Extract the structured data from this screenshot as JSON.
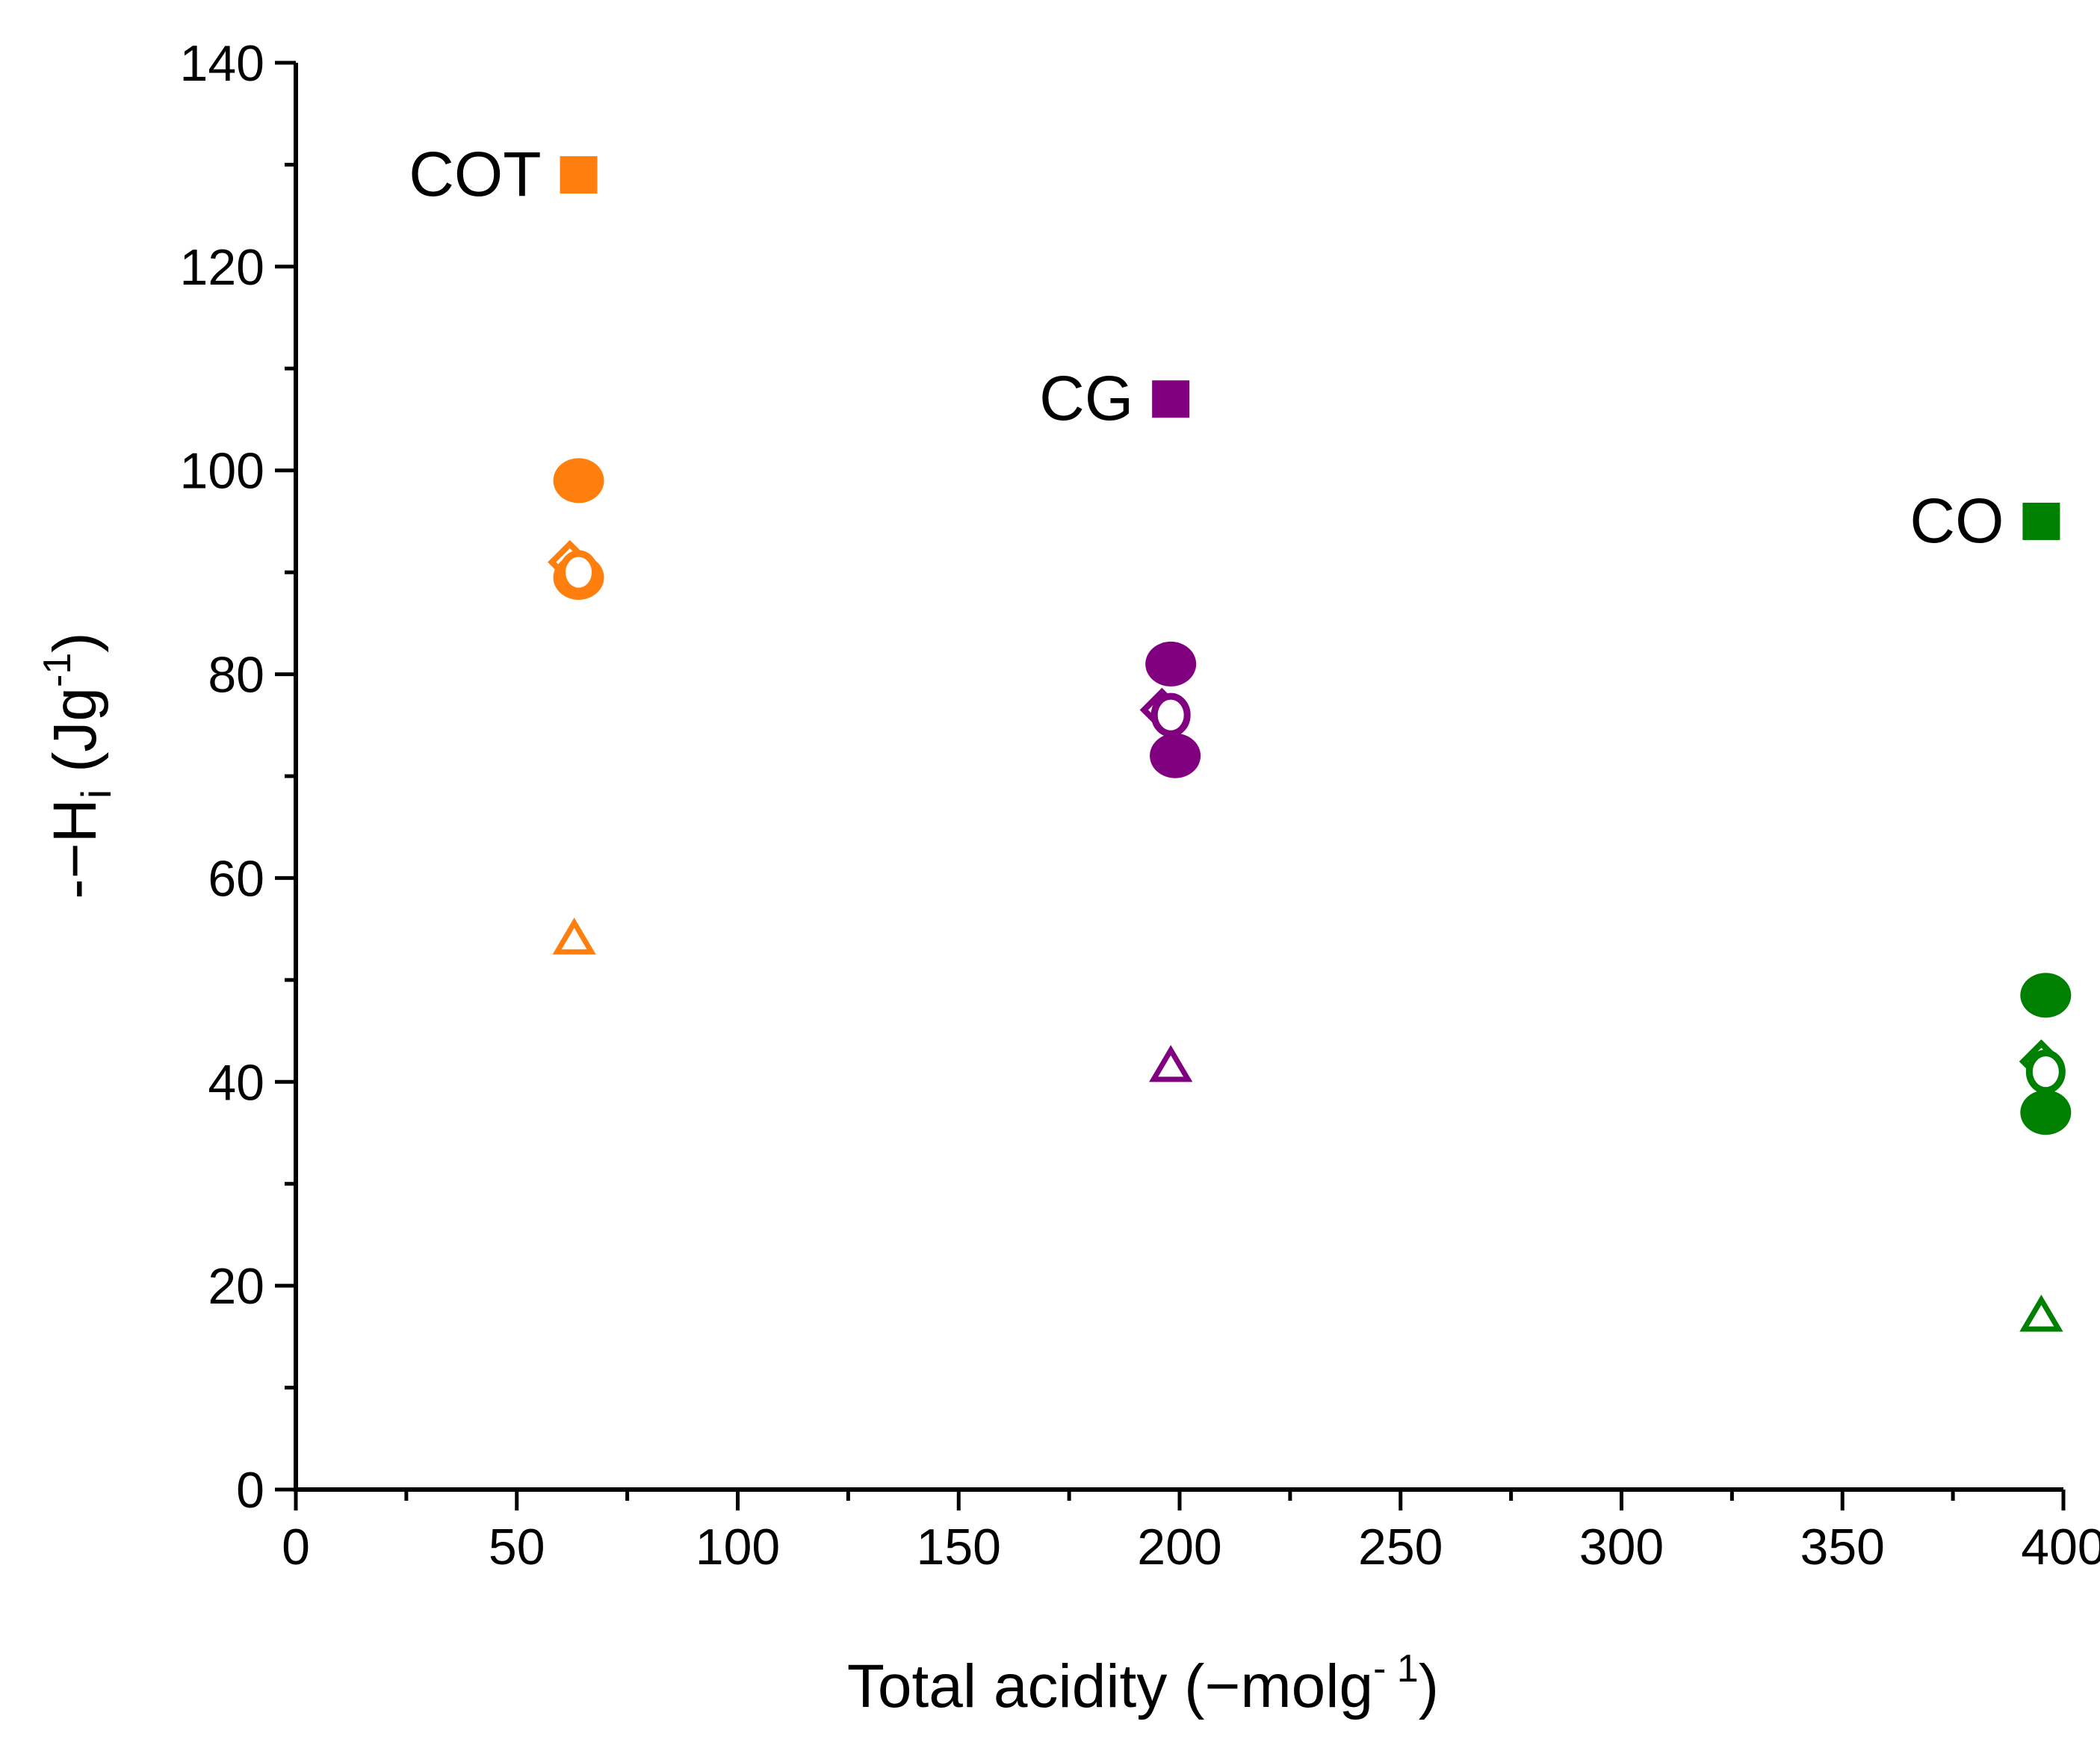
{
  "chart_data": {
    "type": "scatter",
    "title": "",
    "xlabel": {
      "text": "Total acidity (",
      "mu": "−",
      "unit": "molg",
      "sup": "- 1",
      "close": ")"
    },
    "ylabel": {
      "prefix": "-",
      "delta": "−",
      "symbol": "H",
      "sub": "i",
      "unit": " (Jg",
      "sup": "-1",
      "close": ")"
    },
    "xlim": [
      0,
      400
    ],
    "ylim": [
      0,
      140
    ],
    "xticks": [
      0,
      50,
      100,
      150,
      200,
      250,
      300,
      350,
      400
    ],
    "yticks": [
      0,
      20,
      40,
      60,
      80,
      100,
      120,
      140
    ],
    "xtick_labels": [
      "0",
      "50",
      "100",
      "150",
      "200",
      "250",
      "300",
      "350",
      "400"
    ],
    "ytick_labels": [
      "0",
      "20",
      "40",
      "60",
      "80",
      "100",
      "120",
      "140"
    ],
    "grid": false,
    "legend": "none",
    "series": [
      {
        "name": "COT",
        "color": "#ff7f0e",
        "points": [
          {
            "x": 64,
            "y": 129,
            "marker": "square-filled"
          },
          {
            "x": 64,
            "y": 99,
            "marker": "circle-filled"
          },
          {
            "x": 64,
            "y": 89.5,
            "marker": "circle-filled"
          },
          {
            "x": 62,
            "y": 91,
            "marker": "diamond-open"
          },
          {
            "x": 64,
            "y": 90,
            "marker": "circle-open"
          },
          {
            "x": 63,
            "y": 54,
            "marker": "triangle-open"
          }
        ]
      },
      {
        "name": "CG",
        "color": "#800080",
        "points": [
          {
            "x": 198,
            "y": 107,
            "marker": "square-filled"
          },
          {
            "x": 198,
            "y": 81,
            "marker": "circle-filled"
          },
          {
            "x": 199,
            "y": 72,
            "marker": "circle-filled"
          },
          {
            "x": 196,
            "y": 76.5,
            "marker": "diamond-open"
          },
          {
            "x": 198,
            "y": 76,
            "marker": "circle-open"
          },
          {
            "x": 198,
            "y": 41.5,
            "marker": "triangle-open"
          }
        ]
      },
      {
        "name": "CO",
        "color": "#008000",
        "points": [
          {
            "x": 395,
            "y": 95,
            "marker": "square-filled"
          },
          {
            "x": 396,
            "y": 48.5,
            "marker": "circle-filled"
          },
          {
            "x": 396,
            "y": 37,
            "marker": "circle-filled"
          },
          {
            "x": 395,
            "y": 42,
            "marker": "diamond-open"
          },
          {
            "x": 396,
            "y": 41,
            "marker": "circle-open"
          },
          {
            "x": 395,
            "y": 17,
            "marker": "triangle-open"
          }
        ]
      }
    ]
  }
}
